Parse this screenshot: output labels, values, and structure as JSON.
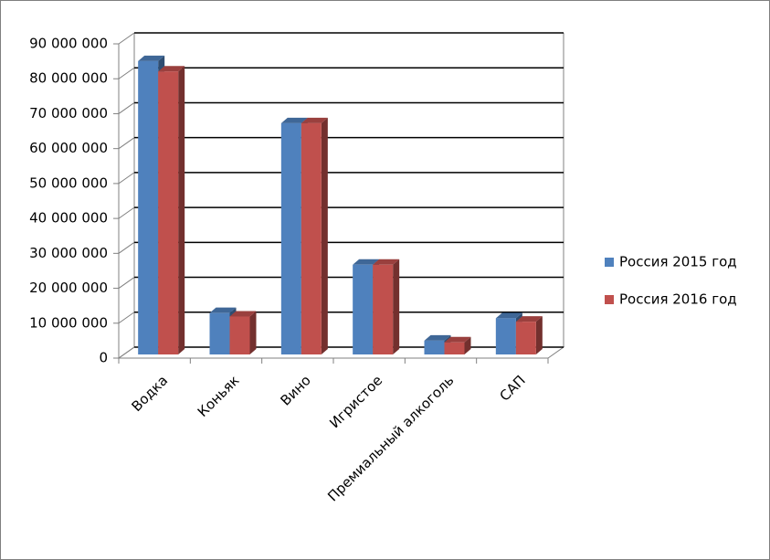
{
  "chart_data": {
    "type": "bar3d",
    "categories": [
      "Водка",
      "Коньяк",
      "Вино",
      "Игристое",
      "Премиальный алкоголь",
      "САП"
    ],
    "series": [
      {
        "name": "Россия 2015 год",
        "color": "#4f81bd",
        "values": [
          85000000,
          12000000,
          67000000,
          26000000,
          4000000,
          10500000
        ]
      },
      {
        "name": "Россия 2016 год",
        "color": "#c0504d",
        "values": [
          82000000,
          11000000,
          67000000,
          26000000,
          3500000,
          9500000
        ]
      }
    ],
    "ylim": [
      0,
      90000000
    ],
    "yticks": [
      0,
      {
        "value": 10000000,
        "label": "10 000 000"
      },
      {
        "value": 20000000,
        "label": "20 000 000"
      },
      {
        "value": 30000000,
        "label": "30 000 000"
      },
      {
        "value": 40000000,
        "label": "40 000 000"
      },
      {
        "value": 50000000,
        "label": "50 000 000"
      },
      {
        "value": 60000000,
        "label": "60 000 000"
      },
      {
        "value": 70000000,
        "label": "70 000 000"
      },
      {
        "value": 80000000,
        "label": "80 000 000"
      },
      {
        "value": 90000000,
        "label": "90 000 000"
      }
    ],
    "grid": true,
    "legend": "right"
  }
}
